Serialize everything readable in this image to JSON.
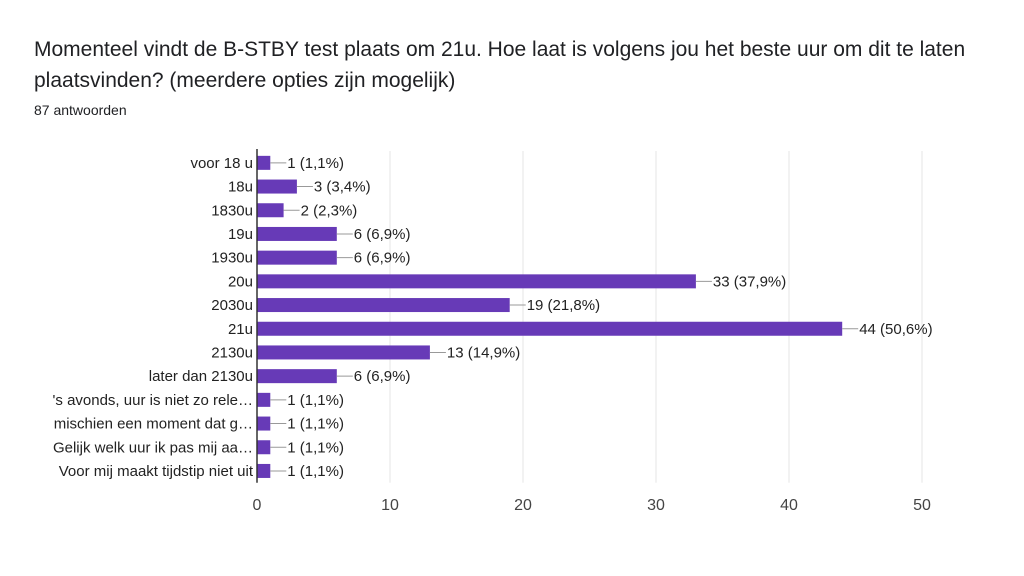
{
  "title": "Momenteel vindt de B-STBY test plaats om 21u. Hoe laat is volgens jou het beste uur om dit te laten plaatsvinden? (meerdere opties zijn mogelijk)",
  "subtitle": "87 antwoorden",
  "chart_data": {
    "type": "bar",
    "orientation": "horizontal",
    "categories": [
      "voor 18 u",
      "18u",
      "1830u",
      "19u",
      "1930u",
      "20u",
      "2030u",
      "21u",
      "2130u",
      "later dan 2130u",
      "'s avonds, uur is niet zo rele…",
      "mischien een moment dat g…",
      "Gelijk welk uur ik pas mij aa…",
      "Voor mij maakt tijdstip niet uit"
    ],
    "values": [
      1,
      3,
      2,
      6,
      6,
      33,
      19,
      44,
      13,
      6,
      1,
      1,
      1,
      1
    ],
    "data_labels": [
      "1 (1,1%)",
      "3 (3,4%)",
      "2 (2,3%)",
      "6 (6,9%)",
      "6 (6,9%)",
      "33 (37,9%)",
      "19 (21,8%)",
      "44 (50,6%)",
      "13 (14,9%)",
      "6 (6,9%)",
      "1 (1,1%)",
      "1 (1,1%)",
      "1 (1,1%)",
      "1 (1,1%)"
    ],
    "xlim": [
      0,
      50
    ],
    "xticks": [
      "0",
      "10",
      "20",
      "30",
      "40",
      "50"
    ],
    "grid": true,
    "color": "#673ab7"
  }
}
